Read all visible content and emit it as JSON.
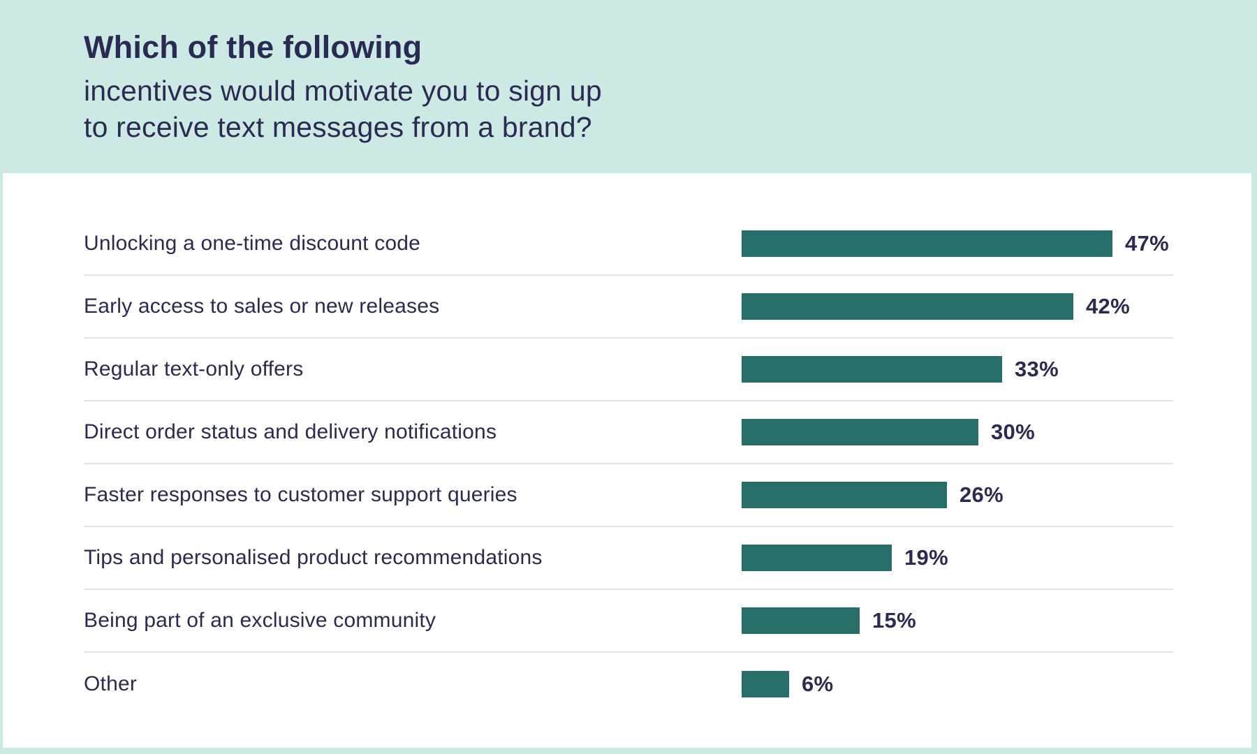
{
  "colors": {
    "background_mint": "#cde9e4",
    "panel_white": "#ffffff",
    "bar_teal": "#266e67",
    "text_navy": "#2a2a52",
    "divider_gray": "#e2e2e8"
  },
  "header": {
    "title_bold": "Which of the following",
    "subtitle_line1": "incentives would motivate you to sign up",
    "subtitle_line2": "to receive text messages from a brand?"
  },
  "chart_data": {
    "type": "bar",
    "orientation": "horizontal",
    "title": "Which of the following incentives would motivate you to sign up to receive text messages from a brand?",
    "categories": [
      "Unlocking a one-time discount code",
      "Early access to sales or new releases",
      "Regular text-only offers",
      "Direct order status and delivery notifications",
      "Faster responses to customer support queries",
      "Tips and personalised product recommendations",
      "Being part of an exclusive community",
      "Other"
    ],
    "values": [
      47,
      42,
      33,
      30,
      26,
      19,
      15,
      6
    ],
    "value_suffix": "%",
    "xlim": [
      0,
      47
    ],
    "bar_color": "#266e67",
    "grid": false,
    "legend": false,
    "value_label_position": "end-of-bar",
    "value_label_style": "bold"
  }
}
